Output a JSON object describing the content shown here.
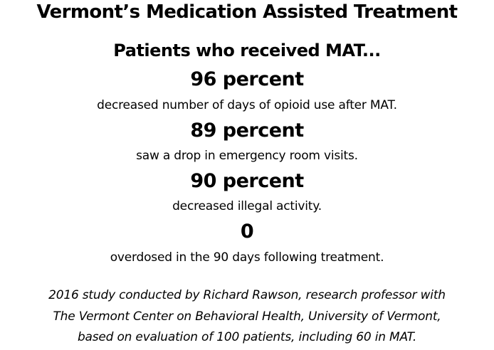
{
  "title": "Vermont’s Medication Assisted Treatment",
  "subtitle": "Patients who received MAT...",
  "stats": [
    {
      "value": "96 percent",
      "description": "decreased number of days of opioid use after MAT."
    },
    {
      "value": "89 percent",
      "description": "saw a drop in emergency room visits."
    },
    {
      "value": "90 percent",
      "description": "decreased illegal activity."
    },
    {
      "value": "0",
      "description": "overdosed in the 90 days following treatment."
    }
  ],
  "footnote": [
    "2016 study conducted by Richard Rawson, research professor with",
    "The Vermont Center on Behavioral Health, University of Vermont,",
    "based on evaluation of 100 patients, including 60 in MAT."
  ]
}
